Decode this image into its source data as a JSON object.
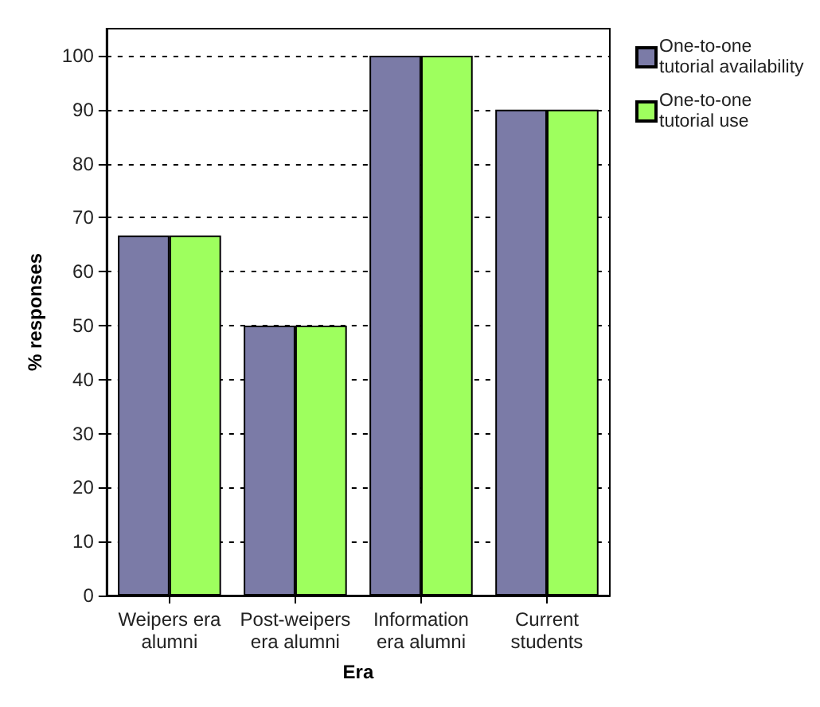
{
  "chart_data": {
    "type": "bar",
    "xlabel": "Era",
    "ylabel": "% responses",
    "categories": [
      "Weipers era\nalumni",
      "Post-weipers\nera alumni",
      "Information\nera alumni",
      "Current\nstudents"
    ],
    "series": [
      {
        "name": "One-to-one tutorial availability",
        "color": "#7b7ba7",
        "values": [
          66.7,
          50,
          100,
          90
        ]
      },
      {
        "name": "One-to-one tutorial use",
        "color": "#9eff5e",
        "values": [
          66.7,
          50,
          100,
          90
        ]
      }
    ],
    "ylim": [
      0,
      105
    ],
    "yticks": [
      0,
      10,
      20,
      30,
      40,
      50,
      60,
      70,
      80,
      90,
      100
    ],
    "grid": "y",
    "legend": "top right"
  }
}
